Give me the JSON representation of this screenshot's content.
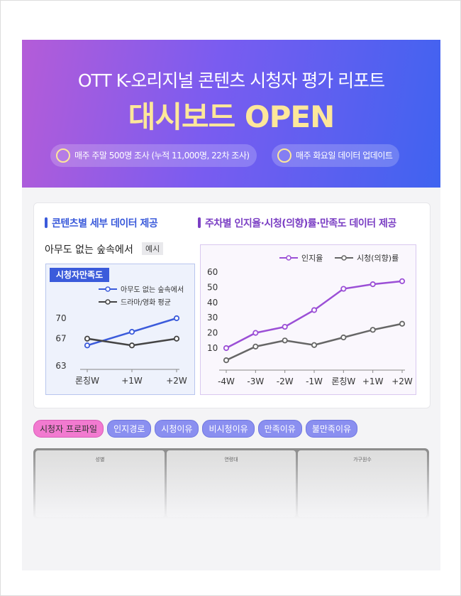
{
  "header": {
    "title": "OTT K-오리지널 콘텐츠 시청자 평가 리포트",
    "headline": "대시보드 OPEN",
    "badges": [
      "매주 주말 500명 조사 (누적 11,000명, 22차 조사)",
      "매주 화요일 데이터 업데이트"
    ]
  },
  "left": {
    "heading": "콘텐츠별 세부 데이터 제공",
    "content_title": "아무도 없는 숲속에서",
    "tag": "예시",
    "chart_data": {
      "type": "line",
      "title": "시청자만족도",
      "categories": [
        "론칭W",
        "+1W",
        "+2W"
      ],
      "series": [
        {
          "name": "아무도 없는 숲속에서",
          "color": "#3b5bdb",
          "values": [
            66,
            68,
            70
          ]
        },
        {
          "name": "드라마/영화 평균",
          "color": "#444444",
          "values": [
            67,
            66,
            67
          ]
        }
      ],
      "ylim": [
        63,
        70
      ],
      "yticks": [
        63,
        67,
        70
      ]
    }
  },
  "right": {
    "heading": "주차별 인지율·시청(의향)률·만족도 데이터 제공",
    "chart_data": {
      "type": "line",
      "categories": [
        "-4W",
        "-3W",
        "-2W",
        "-1W",
        "론칭W",
        "+1W",
        "+2W"
      ],
      "series": [
        {
          "name": "인지율",
          "color": "#9b4fd6",
          "values": [
            10,
            20,
            24,
            35,
            49,
            52,
            54
          ]
        },
        {
          "name": "시청(의향)률",
          "color": "#666666",
          "values": [
            2,
            11,
            15,
            12,
            17,
            22,
            26
          ]
        }
      ],
      "ylim": [
        0,
        60
      ],
      "yticks": [
        10,
        20,
        30,
        40,
        50,
        60
      ]
    }
  },
  "tabs": [
    "시청자 프로파일",
    "인지경로",
    "시청이유",
    "비시청이유",
    "만족이유",
    "불만족이유"
  ],
  "preview": [
    "성별",
    "연령대",
    "가구원수"
  ]
}
